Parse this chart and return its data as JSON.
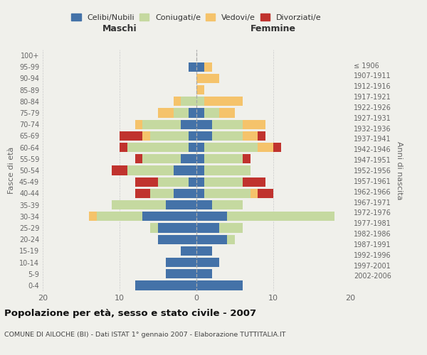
{
  "age_groups": [
    "0-4",
    "5-9",
    "10-14",
    "15-19",
    "20-24",
    "25-29",
    "30-34",
    "35-39",
    "40-44",
    "45-49",
    "50-54",
    "55-59",
    "60-64",
    "65-69",
    "70-74",
    "75-79",
    "80-84",
    "85-89",
    "90-94",
    "95-99",
    "100+"
  ],
  "birth_years": [
    "2002-2006",
    "1997-2001",
    "1992-1996",
    "1987-1991",
    "1982-1986",
    "1977-1981",
    "1972-1976",
    "1967-1971",
    "1962-1966",
    "1957-1961",
    "1952-1956",
    "1947-1951",
    "1942-1946",
    "1937-1941",
    "1932-1936",
    "1927-1931",
    "1922-1926",
    "1917-1921",
    "1912-1916",
    "1907-1911",
    "≤ 1906"
  ],
  "maschi": {
    "celibi": [
      8,
      4,
      4,
      2,
      5,
      5,
      7,
      4,
      3,
      1,
      3,
      2,
      1,
      1,
      2,
      1,
      0,
      0,
      0,
      1,
      0
    ],
    "coniugati": [
      0,
      0,
      0,
      0,
      0,
      1,
      6,
      7,
      3,
      4,
      6,
      5,
      8,
      5,
      5,
      2,
      2,
      0,
      0,
      0,
      0
    ],
    "vedovi": [
      0,
      0,
      0,
      0,
      0,
      0,
      1,
      0,
      0,
      0,
      0,
      0,
      0,
      1,
      1,
      2,
      1,
      0,
      0,
      0,
      0
    ],
    "divorziati": [
      0,
      0,
      0,
      0,
      0,
      0,
      0,
      0,
      2,
      3,
      2,
      1,
      1,
      3,
      0,
      0,
      0,
      0,
      0,
      0,
      0
    ]
  },
  "femmine": {
    "nubili": [
      6,
      2,
      3,
      2,
      4,
      3,
      4,
      2,
      1,
      1,
      1,
      1,
      1,
      2,
      2,
      1,
      0,
      0,
      0,
      1,
      0
    ],
    "coniugate": [
      0,
      0,
      0,
      0,
      1,
      3,
      14,
      4,
      6,
      5,
      6,
      5,
      7,
      4,
      4,
      2,
      1,
      0,
      0,
      0,
      0
    ],
    "vedove": [
      0,
      0,
      0,
      0,
      0,
      0,
      0,
      0,
      1,
      0,
      0,
      0,
      2,
      2,
      3,
      2,
      5,
      1,
      3,
      1,
      0
    ],
    "divorziate": [
      0,
      0,
      0,
      0,
      0,
      0,
      0,
      0,
      2,
      3,
      0,
      1,
      1,
      1,
      0,
      0,
      0,
      0,
      0,
      0,
      0
    ]
  },
  "colors": {
    "celibi": "#4472a8",
    "coniugati": "#c5d9a0",
    "vedovi": "#f5c36b",
    "divorziati": "#c0332e"
  },
  "title": "Popolazione per età, sesso e stato civile - 2007",
  "subtitle": "COMUNE DI AILOCHE (BI) - Dati ISTAT 1° gennaio 2007 - Elaborazione TUTTITALIA.IT",
  "xlabel_left": "Maschi",
  "xlabel_right": "Femmine",
  "ylabel_left": "Fasce di età",
  "ylabel_right": "Anni di nascita",
  "xlim": 20,
  "background_color": "#f0f0eb"
}
